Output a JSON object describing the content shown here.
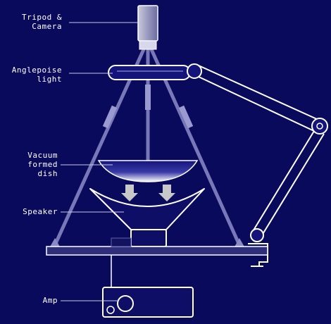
{
  "labels": {
    "tripod": {
      "line1": "Tripod &",
      "line2": "Camera"
    },
    "light": {
      "line1": "Anglepoise",
      "line2": "light"
    },
    "dish": {
      "line1": "Vacuum",
      "line2": "formed",
      "line3": "dish"
    },
    "speaker": {
      "line1": "Speaker"
    },
    "amp": {
      "line1": "Amp"
    }
  },
  "colors": {
    "background": "#0a0a5c",
    "line": "#c8c8e8",
    "outline": "#ffffff",
    "component_fill": "#0e0e66",
    "arrow": "#c8c8c8"
  }
}
